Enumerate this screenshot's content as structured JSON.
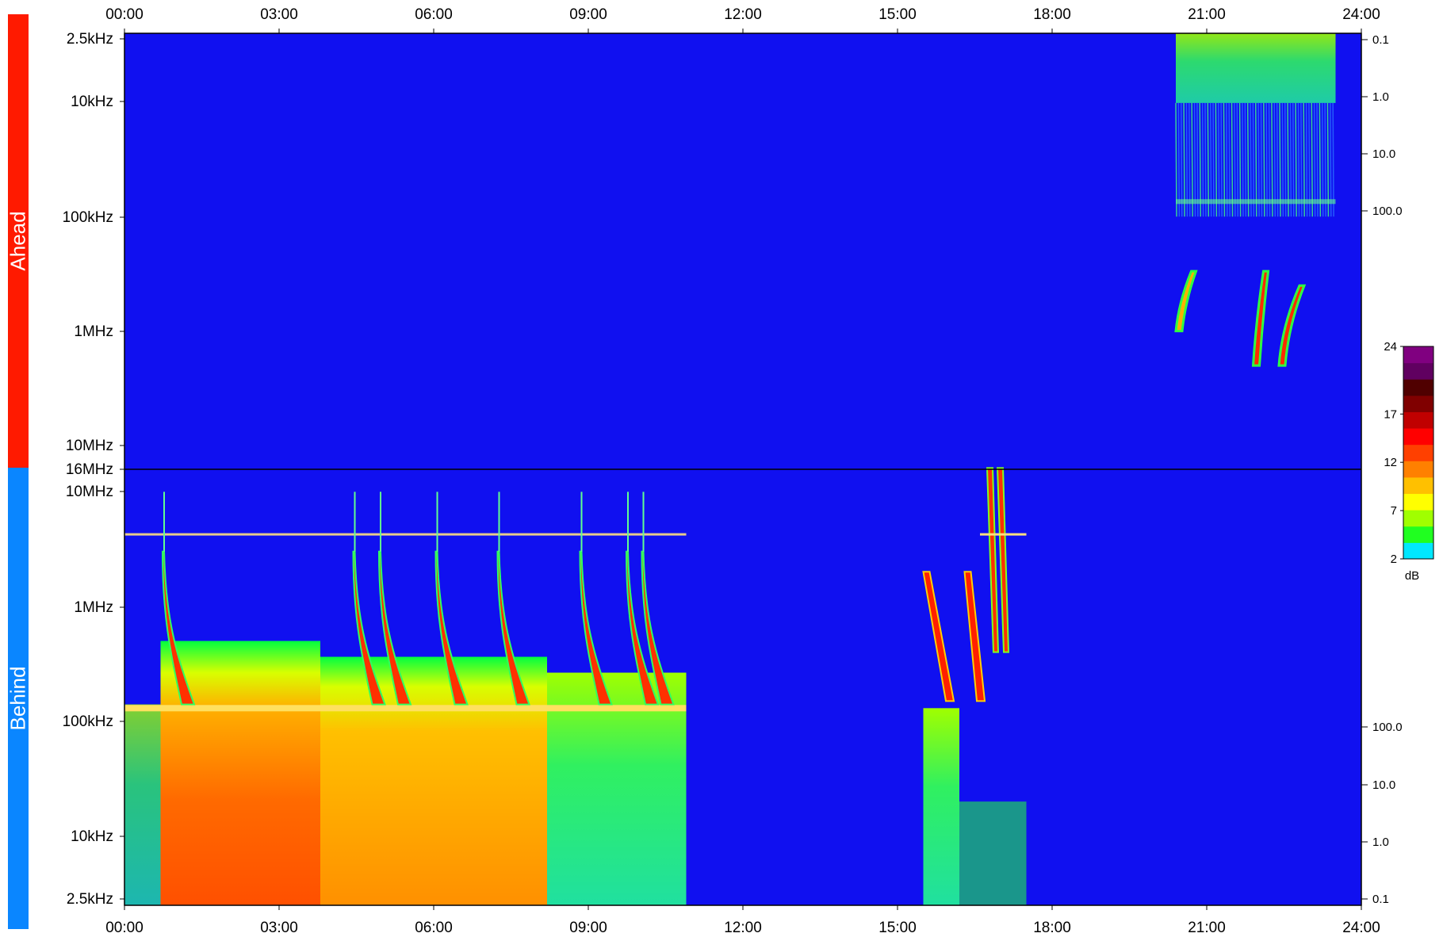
{
  "panels": {
    "top_label": "Ahead",
    "bottom_label": "Behind",
    "top_color": "#ff1a00",
    "bottom_color": "#0a86ff"
  },
  "chart_data": {
    "type": "heatmap",
    "background_color": "#1010f0",
    "x_ticks": [
      "00:00",
      "03:00",
      "06:00",
      "09:00",
      "12:00",
      "15:00",
      "18:00",
      "21:00",
      "24:00"
    ],
    "x_range_hours": [
      0,
      24
    ],
    "top_panel": {
      "label": "Ahead",
      "y_tick_labels": [
        "2.5kHz",
        "10kHz",
        "100kHz",
        "1MHz",
        "10MHz",
        "16MHz"
      ],
      "y_scale": "log",
      "right_tick_labels": [
        "0.1",
        "1.0",
        "10.0",
        "100.0"
      ]
    },
    "bottom_panel": {
      "label": "Behind",
      "y_tick_labels": [
        "10MHz",
        "1MHz",
        "100kHz",
        "10kHz",
        "2.5kHz"
      ],
      "y_scale": "log",
      "right_tick_labels": [
        "100.0",
        "10.0",
        "1.0",
        "0.1"
      ]
    },
    "colorbar": {
      "label": "dB",
      "range": [
        2,
        24
      ],
      "tick_labels": [
        "24",
        "17",
        "12",
        "7",
        "2"
      ],
      "colors": [
        "#00e8ff",
        "#20ff20",
        "#a0ff00",
        "#ffff00",
        "#ffc000",
        "#ff8000",
        "#ff4000",
        "#ff0000",
        "#c00000",
        "#800000",
        "#500000",
        "#600060",
        "#800080"
      ]
    },
    "features": [
      {
        "panel": "top",
        "kind": "activity_block",
        "start_hour": 20.4,
        "end_hour": 23.5,
        "freq_low": "100kHz",
        "freq_high": "2.5kHz",
        "level": "low"
      },
      {
        "panel": "top",
        "kind": "drifting_burst",
        "start_hour": 20.4,
        "end_hour": 20.7,
        "freq_high": "300kHz",
        "freq_low": "1MHz",
        "level": "medium"
      },
      {
        "panel": "top",
        "kind": "drifting_burst",
        "start_hour": 21.9,
        "end_hour": 22.1,
        "freq_high": "300kHz",
        "freq_low": "2MHz",
        "level": "high"
      },
      {
        "panel": "top",
        "kind": "drifting_burst",
        "start_hour": 22.4,
        "end_hour": 22.8,
        "freq_high": "400kHz",
        "freq_low": "2MHz",
        "level": "high"
      },
      {
        "panel": "bottom",
        "kind": "broadband_block",
        "start_hour": 0.7,
        "end_hour": 10.9,
        "freq_high": "500kHz",
        "freq_low": "2.5kHz",
        "level": "high"
      },
      {
        "panel": "bottom",
        "kind": "type_iii_burst",
        "hours": [
          0.8,
          4.5,
          5.0,
          6.1,
          7.3,
          8.9,
          9.8,
          10.1
        ],
        "level": "high"
      },
      {
        "panel": "bottom",
        "kind": "broadband_block",
        "start_hour": 15.5,
        "end_hour": 17.5,
        "freq_high": "2MHz",
        "freq_low": "2.5kHz",
        "level": "medium"
      }
    ]
  }
}
